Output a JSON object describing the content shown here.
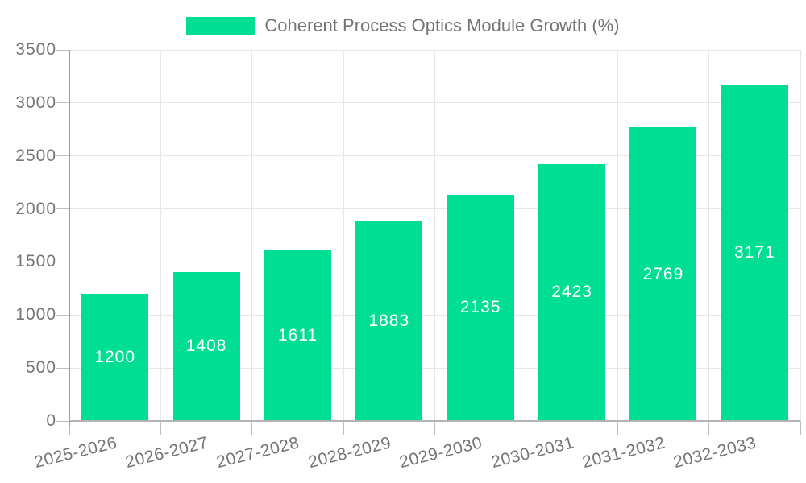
{
  "chart_data": {
    "type": "bar",
    "title": "",
    "legend": [
      "Coherent Process Optics Module Growth (%)"
    ],
    "legend_position": "top-center",
    "categories": [
      "2025-2026",
      "2026-2027",
      "2027-2028",
      "2028-2029",
      "2029-2030",
      "2030-2031",
      "2031-2032",
      "2032-2033"
    ],
    "values": [
      1200,
      1408,
      1611,
      1883,
      2135,
      2423,
      2769,
      3171
    ],
    "bar_value_labels": [
      "1200",
      "1408",
      "1611",
      "1883",
      "2135",
      "2423",
      "2769",
      "3171"
    ],
    "xlabel": "",
    "ylabel": "",
    "ylim": [
      0,
      3500
    ],
    "yticks": [
      0,
      500,
      1000,
      1500,
      2000,
      2500,
      3000,
      3500
    ],
    "grid": "on",
    "x_tick_label_rotation_deg": -14,
    "colors": {
      "bar": "#00de94",
      "bar_label": "#ffffff",
      "axis_text": "#757575",
      "gridline": "#e6e6e6",
      "y_axis_line": "#9e9e9e",
      "x_axis_line": "#b3b3b3",
      "tick": "#bdbdbd",
      "background": "#ffffff"
    }
  }
}
